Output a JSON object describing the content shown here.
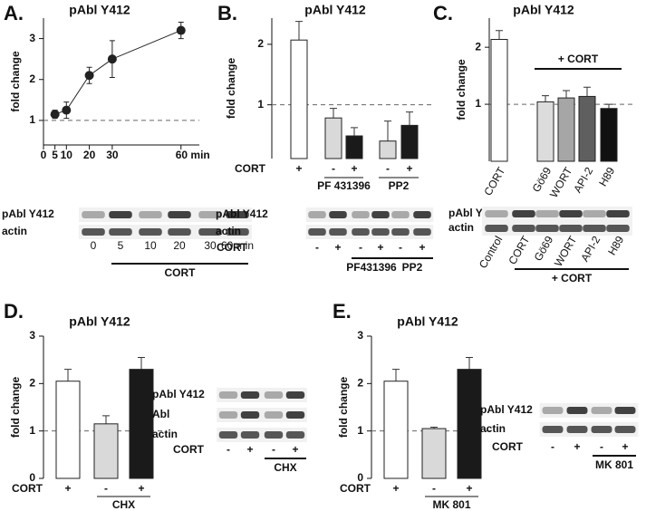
{
  "chart_data": [
    {
      "type": "line",
      "panel": "A.",
      "title": "pAbl Y412",
      "ylabel": "fold change",
      "x": [
        5,
        10,
        20,
        30,
        60
      ],
      "values": [
        1.15,
        1.25,
        2.1,
        2.5,
        3.2
      ],
      "errors": [
        0.1,
        0.2,
        0.2,
        0.45,
        0.2
      ],
      "xlim": [
        0,
        68
      ],
      "xticks": [
        0,
        5,
        10,
        20,
        30,
        {
          "value": 60,
          "label": "60 min"
        }
      ],
      "ylim": [
        0.4,
        3.5
      ],
      "yticks": [
        1,
        2,
        3
      ],
      "reference_line": 1,
      "color": "#222222",
      "blot": {
        "rows": [
          "pAbl Y412",
          "actin"
        ],
        "lanes": [
          "0",
          "5",
          "10",
          "20",
          "30",
          "60 min"
        ],
        "groups": [
          "CORT"
        ]
      }
    },
    {
      "type": "bar",
      "panel": "B.",
      "title": "pAbl Y412",
      "ylabel": "fold change",
      "log": true,
      "condition": "CORT",
      "categories": [
        "+",
        "-",
        "+",
        "-",
        "+"
      ],
      "values": [
        2.1,
        0.86,
        0.7,
        0.66,
        0.79
      ],
      "errors": [
        0.5,
        0.1,
        0.07,
        0.17,
        0.13
      ],
      "colors": [
        "#ffffff",
        "#d9d9d9",
        "#1a1a1a",
        "#d9d9d9",
        "#1a1a1a"
      ],
      "groups": [
        "PF 431396",
        "PP2"
      ],
      "ylim": [
        0.54,
        2.7
      ],
      "yticks": [
        1,
        2
      ],
      "reference_line": 1,
      "blot": {
        "rows": [
          "pAbl Y412",
          "actin"
        ],
        "condition": "CORT",
        "lanes": [
          "-",
          "+",
          "-",
          "+",
          "-",
          "+"
        ],
        "groups": [
          "PF431396",
          "PP2"
        ]
      }
    },
    {
      "type": "bar",
      "panel": "C.",
      "title": "pAbl Y412",
      "ylabel": "fold change",
      "log": true,
      "categories": [
        "CORT",
        "Gö69",
        "WORT",
        "API-2",
        "H89"
      ],
      "values": [
        2.2,
        1.03,
        1.08,
        1.1,
        0.95
      ],
      "errors": [
        0.25,
        0.08,
        0.1,
        0.13,
        0.05
      ],
      "colors": [
        "#ffffff",
        "#dcdcdc",
        "#a6a6a6",
        "#5f5f5f",
        "#111111"
      ],
      "annotation": "+ CORT",
      "ylim": [
        0.5,
        2.85
      ],
      "yticks": [
        1,
        2
      ],
      "reference_line": 1,
      "blot": {
        "rows": [
          "pAbl Y412",
          "actin"
        ],
        "lanes": [
          "Control",
          "CORT",
          "Gö69",
          "WORT",
          "API-2",
          "H89"
        ],
        "groups": [
          "+ CORT"
        ]
      }
    },
    {
      "type": "bar",
      "panel": "D.",
      "title": "pAbl Y412",
      "ylabel": "fold change",
      "condition": "CORT",
      "categories": [
        "+",
        "-",
        "+"
      ],
      "values": [
        2.05,
        1.15,
        2.3
      ],
      "errors": [
        0.25,
        0.17,
        0.25
      ],
      "colors": [
        "#ffffff",
        "#d9d9d9",
        "#1a1a1a"
      ],
      "groups": [
        "CHX"
      ],
      "ylim": [
        0,
        3
      ],
      "yticks": [
        0,
        1,
        2,
        3
      ],
      "reference_line": 1,
      "blot": {
        "rows": [
          "pAbl Y412",
          "Abl",
          "actin"
        ],
        "condition": "CORT",
        "lanes": [
          "-",
          "+",
          "-",
          "+"
        ],
        "groups": [
          "CHX"
        ]
      }
    },
    {
      "type": "bar",
      "panel": "E.",
      "title": "pAbl Y412",
      "ylabel": "fold change",
      "condition": "CORT",
      "categories": [
        "+",
        "-",
        "+"
      ],
      "values": [
        2.05,
        1.05,
        2.3
      ],
      "errors": [
        0.25,
        0.03,
        0.25
      ],
      "colors": [
        "#ffffff",
        "#d9d9d9",
        "#1a1a1a"
      ],
      "groups": [
        "MK 801"
      ],
      "ylim": [
        0,
        3
      ],
      "yticks": [
        0,
        1,
        2,
        3
      ],
      "reference_line": 1,
      "blot": {
        "rows": [
          "pAbl Y412",
          "actin"
        ],
        "condition": "CORT",
        "lanes": [
          "-",
          "+",
          "-",
          "+"
        ],
        "groups": [
          "MK 801"
        ]
      }
    }
  ]
}
